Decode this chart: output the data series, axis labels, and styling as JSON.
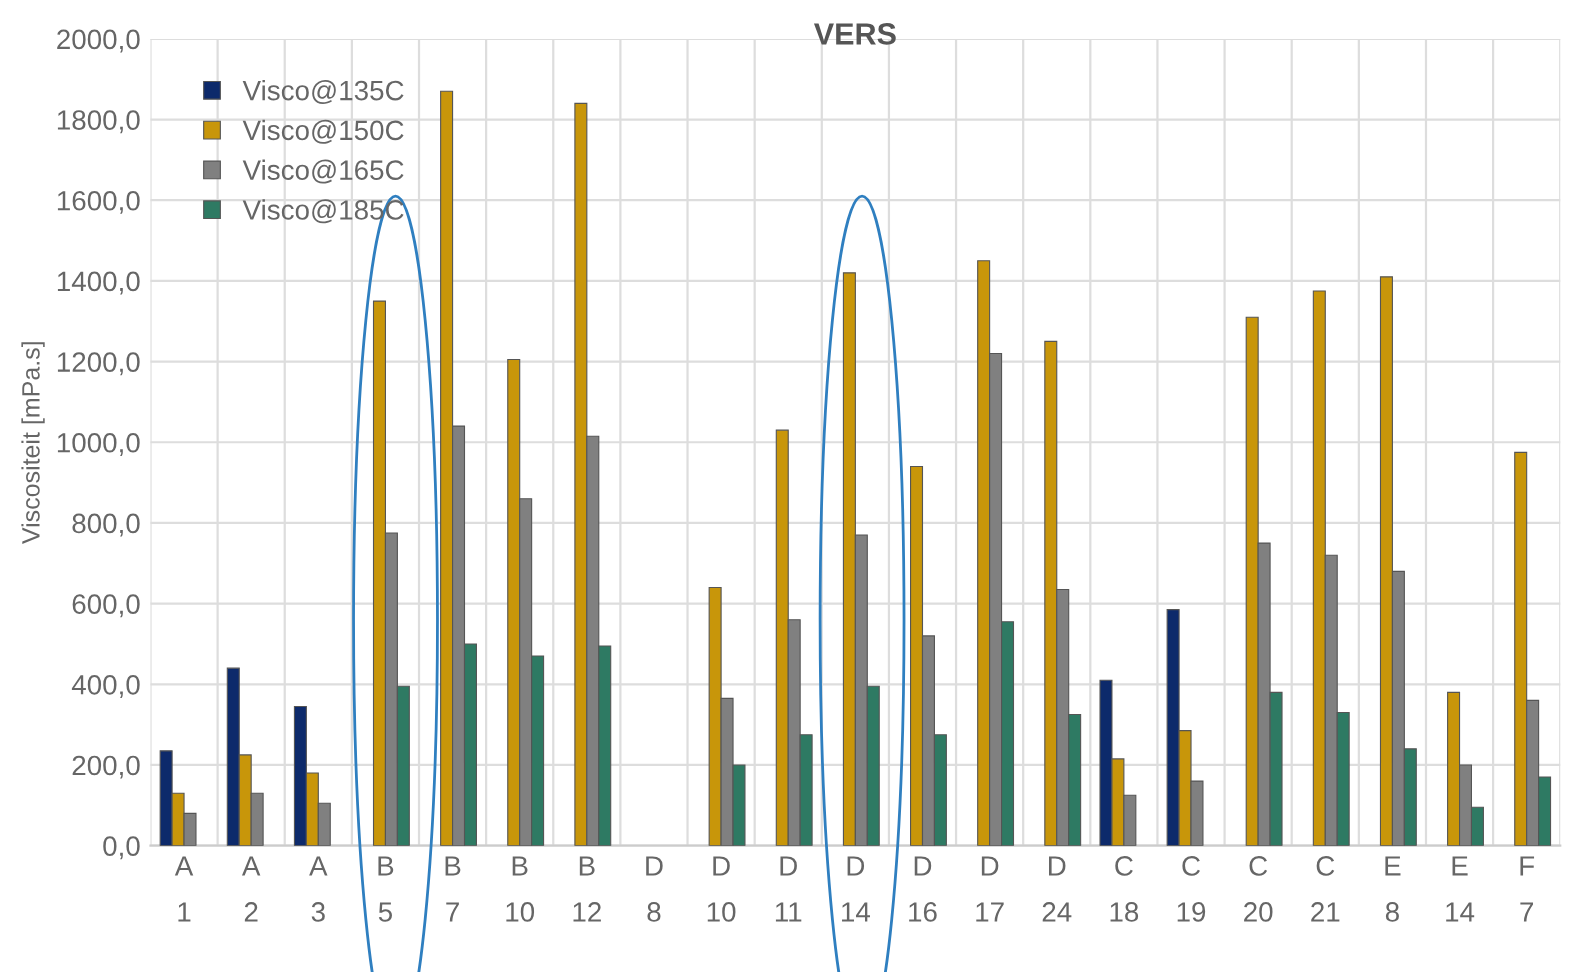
{
  "chart_data": {
    "type": "bar",
    "title": "VERS",
    "ylabel": "Viscositeit [mPa.s]",
    "categories": [
      "A\n1",
      "A\n2",
      "A\n3",
      "B\n5",
      "B\n7",
      "B\n10",
      "B\n12",
      "D\n8",
      "D\n10",
      "D\n11",
      "D\n14",
      "D\n16",
      "D\n17",
      "D\n24",
      "C\n18",
      "C\n19",
      "C\n20",
      "C\n21",
      "E\n8",
      "E\n14",
      "F\n7"
    ],
    "series": [
      {
        "name": "Visco@135C",
        "color": "#0d2a6b",
        "values": [
          235,
          440,
          345,
          null,
          null,
          null,
          null,
          null,
          null,
          null,
          null,
          null,
          null,
          null,
          410,
          585,
          null,
          null,
          null,
          null,
          null
        ]
      },
      {
        "name": "Visco@150C",
        "color": "#c8960a",
        "values": [
          130,
          225,
          180,
          1350,
          1870,
          1205,
          1840,
          null,
          640,
          1030,
          1420,
          940,
          1450,
          1250,
          215,
          285,
          1310,
          1375,
          1410,
          380,
          975
        ]
      },
      {
        "name": "Visco@165C",
        "color": "#808080",
        "values": [
          80,
          130,
          105,
          775,
          1040,
          860,
          1015,
          null,
          365,
          560,
          770,
          520,
          1220,
          635,
          125,
          160,
          750,
          720,
          680,
          200,
          360
        ]
      },
      {
        "name": "Visco@185C",
        "color": "#2e7a63",
        "values": [
          null,
          null,
          null,
          395,
          500,
          470,
          495,
          null,
          200,
          275,
          395,
          275,
          555,
          325,
          null,
          null,
          380,
          330,
          240,
          95,
          170
        ]
      }
    ],
    "ylim": [
      0,
      2000
    ],
    "yticks": [
      {
        "value": 0,
        "label": "0,0"
      },
      {
        "value": 200,
        "label": "200,0"
      },
      {
        "value": 400,
        "label": "400,0"
      },
      {
        "value": 600,
        "label": "600,0"
      },
      {
        "value": 800,
        "label": "800,0"
      },
      {
        "value": 1000,
        "label": "1000,0"
      },
      {
        "value": 1200,
        "label": "1200,0"
      },
      {
        "value": 1400,
        "label": "1400,0"
      },
      {
        "value": 1600,
        "label": "1600,0"
      },
      {
        "value": 1800,
        "label": "1800,0"
      },
      {
        "value": 2000,
        "label": "2000,0"
      }
    ],
    "grid": true,
    "legend": "top left"
  }
}
